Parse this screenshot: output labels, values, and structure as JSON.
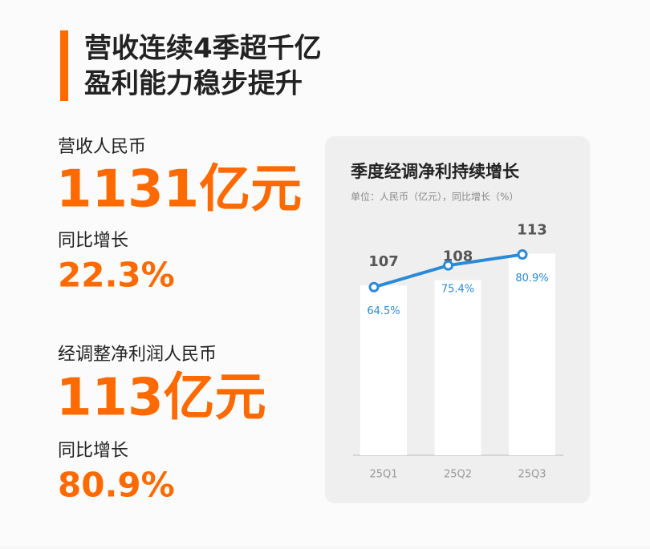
{
  "header": {
    "title_lines": [
      "营收连续4季超千亿",
      "盈利能力稳步提升"
    ]
  },
  "stats": [
    {
      "label": "营收人民币",
      "value": "1131亿元"
    },
    {
      "label": "同比增长",
      "value": "22.3%"
    },
    {
      "label": "经调整净利润人民币",
      "value": "113亿元"
    },
    {
      "label": "同比增长",
      "value": "80.9%"
    }
  ],
  "chart_data": {
    "type": "bar",
    "title": "季度经调净利持续增长",
    "subtitle": "单位：人民币（亿元），同比增长（%）",
    "categories": [
      "25Q1",
      "25Q2",
      "25Q3"
    ],
    "ylim": [
      75,
      117
    ],
    "y2lim": [
      -20,
      92
    ],
    "series": [
      {
        "name": "经调净利",
        "type": "bar",
        "color": "#ffffff",
        "values": [
          107,
          108,
          113
        ]
      },
      {
        "name": "同比增长",
        "type": "line",
        "axis": "y2",
        "color": "#2a8ad8",
        "values": [
          64.5,
          75.4,
          80.9
        ],
        "value_labels": [
          "64.5%",
          "75.4%",
          "80.9%"
        ]
      }
    ]
  }
}
